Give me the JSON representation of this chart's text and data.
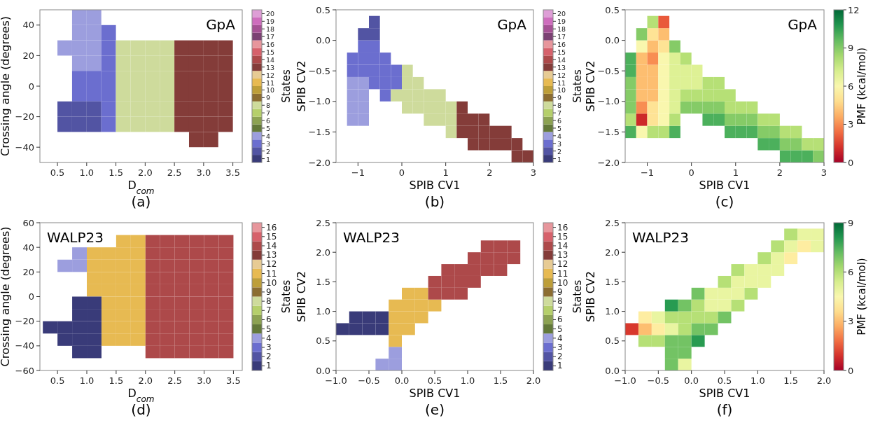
{
  "chart_data": [
    {
      "type": "scatter",
      "title": "GpA",
      "xlabel": "D$_{com}$",
      "ylabel": "Crossing angle (degrees)",
      "clabel": "States",
      "annotations": [
        "(a)"
      ],
      "marker": "square",
      "x": [
        0.625,
        0.625,
        0.625,
        0.875,
        0.875,
        0.875,
        0.875,
        0.875,
        0.875,
        0.875,
        0.875,
        1.125,
        1.125,
        1.125,
        1.125,
        1.125,
        1.125,
        1.125,
        1.125,
        1.375,
        1.375,
        1.375,
        1.375,
        1.375,
        1.375,
        1.375,
        1.625,
        1.625,
        1.625,
        1.625,
        1.625,
        1.625,
        1.875,
        1.875,
        1.875,
        1.875,
        1.875,
        1.875,
        2.125,
        2.125,
        2.125,
        2.125,
        2.125,
        2.125,
        2.375,
        2.375,
        2.375,
        2.375,
        2.375,
        2.375,
        2.625,
        2.625,
        2.625,
        2.625,
        2.625,
        2.625,
        2.875,
        2.875,
        2.875,
        2.875,
        2.875,
        2.875,
        2.875,
        3.125,
        3.125,
        3.125,
        3.125,
        3.125,
        3.125,
        3.125,
        3.375,
        3.375,
        3.375,
        3.375,
        3.375,
        3.375
      ],
      "values": [
        25,
        -15,
        -25,
        45,
        35,
        25,
        15,
        5,
        -5,
        -15,
        -25,
        45,
        35,
        25,
        15,
        5,
        -5,
        -15,
        -25,
        35,
        25,
        15,
        5,
        -5,
        -15,
        -25,
        25,
        15,
        5,
        -5,
        -15,
        -25,
        25,
        15,
        5,
        -5,
        -15,
        -25,
        25,
        15,
        5,
        -5,
        -15,
        -25,
        25,
        15,
        5,
        -5,
        -15,
        -25,
        25,
        15,
        5,
        -5,
        -15,
        -25,
        25,
        15,
        5,
        -5,
        -15,
        -25,
        -35,
        25,
        15,
        5,
        -5,
        -15,
        -25,
        -35,
        25,
        15,
        5,
        -5,
        -15,
        -25
      ],
      "cvalues": [
        4,
        2,
        2,
        4,
        4,
        4,
        4,
        3,
        3,
        2,
        2,
        4,
        4,
        4,
        4,
        3,
        3,
        2,
        2,
        3,
        3,
        3,
        3,
        3,
        3,
        3,
        8,
        8,
        8,
        8,
        8,
        8,
        8,
        8,
        8,
        8,
        8,
        8,
        8,
        8,
        8,
        8,
        8,
        8,
        8,
        8,
        8,
        8,
        8,
        8,
        13,
        13,
        13,
        13,
        13,
        13,
        13,
        13,
        13,
        13,
        13,
        13,
        13,
        13,
        13,
        13,
        13,
        13,
        13,
        13,
        13,
        13,
        13,
        13,
        13,
        13
      ],
      "xlim": [
        0.2,
        3.66
      ],
      "xticks": [
        {
          "value": 0.5,
          "label": "0.5"
        },
        {
          "value": 1,
          "label": "1.0"
        },
        {
          "value": 1.5,
          "label": "1.5"
        },
        {
          "value": 2,
          "label": "2.0"
        },
        {
          "value": 2.5,
          "label": "2.5"
        },
        {
          "value": 3,
          "label": "3.0"
        },
        {
          "value": 3.5,
          "label": "3.5"
        }
      ],
      "ylim": [
        -50,
        50
      ],
      "yticks": [
        {
          "value": -40,
          "label": "−40"
        },
        {
          "value": -20,
          "label": "−20"
        },
        0,
        20,
        40
      ],
      "clim": [
        0.5,
        20.5
      ],
      "cticks": [
        1,
        2,
        3,
        4,
        5,
        6,
        7,
        8,
        9,
        10,
        11,
        12,
        13,
        14,
        15,
        16,
        17,
        18,
        19,
        20
      ]
    },
    {
      "type": "scatter",
      "title": "GpA",
      "xlabel": "SPIB CV1",
      "ylabel": "SPIB CV2",
      "clabel": "States",
      "annotations": [
        "(b)"
      ],
      "marker": "square",
      "x": [
        -1.125,
        -1.125,
        -1.125,
        -1.125,
        -1.125,
        -1.125,
        -0.875,
        -0.875,
        -0.875,
        -0.875,
        -0.875,
        -0.875,
        -0.875,
        -0.875,
        -0.625,
        -0.625,
        -0.625,
        -0.625,
        -0.625,
        -0.625,
        -0.375,
        -0.375,
        -0.375,
        -0.375,
        -0.125,
        -0.125,
        -0.125,
        0.125,
        0.125,
        0.125,
        0.125,
        0.375,
        0.375,
        0.375,
        0.625,
        0.625,
        0.625,
        0.875,
        0.875,
        0.875,
        1.125,
        1.125,
        1.125,
        1.375,
        1.375,
        1.375,
        1.625,
        1.625,
        1.625,
        1.875,
        1.875,
        1.875,
        2.125,
        2.125,
        2.375,
        2.375,
        2.625,
        2.625,
        2.875
      ],
      "values": [
        -1.3,
        -1.1,
        -0.9,
        -0.7,
        -0.5,
        -0.3,
        -1.3,
        -1.1,
        -0.9,
        -0.7,
        -0.5,
        -0.3,
        -0.1,
        0.1,
        -0.7,
        -0.5,
        -0.3,
        -0.1,
        0.1,
        0.3,
        -0.9,
        -0.7,
        -0.5,
        -0.3,
        -0.9,
        -0.7,
        -0.5,
        -1.1,
        -0.9,
        -0.7,
        -0.5,
        -1.1,
        -0.9,
        -0.7,
        -1.3,
        -1.1,
        -0.9,
        -1.3,
        -1.1,
        -0.9,
        -1.5,
        -1.3,
        -1.1,
        -1.5,
        -1.3,
        -1.1,
        -1.7,
        -1.5,
        -1.3,
        -1.7,
        -1.5,
        -1.3,
        -1.7,
        -1.5,
        -1.7,
        -1.5,
        -1.9,
        -1.7,
        -1.9
      ],
      "cvalues": [
        4,
        4,
        4,
        4,
        3,
        3,
        4,
        4,
        4,
        4,
        3,
        3,
        3,
        2,
        3,
        3,
        3,
        3,
        2,
        2,
        3,
        3,
        3,
        3,
        8,
        3,
        3,
        8,
        8,
        8,
        8,
        8,
        8,
        8,
        8,
        8,
        8,
        8,
        8,
        8,
        8,
        8,
        8,
        13,
        13,
        13,
        13,
        13,
        13,
        13,
        13,
        13,
        13,
        13,
        13,
        13,
        13,
        13,
        13
      ],
      "xlim": [
        -1.5,
        3
      ],
      "xticks": [
        {
          "value": -1,
          "label": "−1"
        },
        0,
        1,
        2,
        3
      ],
      "ylim": [
        -2,
        0.5
      ],
      "yticks": [
        {
          "value": -2,
          "label": "−2.0"
        },
        {
          "value": -1.5,
          "label": "−1.5"
        },
        {
          "value": -1,
          "label": "−1.0"
        },
        {
          "value": -0.5,
          "label": "−0.5"
        },
        {
          "value": 0,
          "label": "0.0"
        },
        0.5
      ],
      "clim": [
        0.5,
        20.5
      ],
      "cticks": [
        1,
        2,
        3,
        4,
        5,
        6,
        7,
        8,
        9,
        10,
        11,
        12,
        13,
        14,
        15,
        16,
        17,
        18,
        19,
        20
      ]
    },
    {
      "type": "scatter",
      "title": "GpA",
      "xlabel": "SPIB CV1",
      "ylabel": "SPIB CV2",
      "clabel": "PMF (kcal/mol)",
      "annotations": [
        "(c)"
      ],
      "marker": "square",
      "x": [
        -1.375,
        -1.375,
        -1.375,
        -1.375,
        -1.375,
        -1.375,
        -1.375,
        -1.125,
        -1.125,
        -1.125,
        -1.125,
        -1.125,
        -1.125,
        -1.125,
        -1.125,
        -1.125,
        -0.875,
        -0.875,
        -0.875,
        -0.875,
        -0.875,
        -0.875,
        -0.875,
        -0.875,
        -0.875,
        -0.875,
        -0.625,
        -0.625,
        -0.625,
        -0.625,
        -0.625,
        -0.625,
        -0.625,
        -0.625,
        -0.625,
        -0.625,
        -0.375,
        -0.375,
        -0.375,
        -0.375,
        -0.375,
        -0.375,
        -0.375,
        -0.375,
        -0.125,
        -0.125,
        -0.125,
        -0.125,
        -0.125,
        0.125,
        0.125,
        0.125,
        0.125,
        0.375,
        0.375,
        0.375,
        0.375,
        0.625,
        0.625,
        0.625,
        0.625,
        0.875,
        0.875,
        0.875,
        0.875,
        1.125,
        1.125,
        1.125,
        1.375,
        1.375,
        1.375,
        1.625,
        1.625,
        1.625,
        1.875,
        1.875,
        1.875,
        2.125,
        2.125,
        2.125,
        2.375,
        2.375,
        2.375,
        2.625,
        2.625,
        2.875,
        2.875
      ],
      "values": [
        -1.5,
        -1.3,
        -1.1,
        -0.9,
        -0.7,
        -0.5,
        -0.3,
        -1.5,
        -1.3,
        -1.1,
        -0.9,
        -0.7,
        -0.5,
        -0.3,
        -0.1,
        0.1,
        -1.5,
        -1.3,
        -1.1,
        -0.9,
        -0.7,
        -0.5,
        -0.3,
        -0.1,
        0.1,
        0.3,
        -1.5,
        -1.3,
        -1.1,
        -0.9,
        -0.7,
        -0.5,
        -0.3,
        -0.1,
        0.1,
        0.3,
        -1.5,
        -1.3,
        -1.1,
        -0.9,
        -0.7,
        -0.5,
        -0.3,
        -0.1,
        -1.1,
        -0.9,
        -0.7,
        -0.5,
        -0.3,
        -1.1,
        -0.9,
        -0.7,
        -0.5,
        -1.3,
        -1.1,
        -0.9,
        -0.7,
        -1.3,
        -1.1,
        -0.9,
        -0.7,
        -1.5,
        -1.3,
        -1.1,
        -0.9,
        -1.5,
        -1.3,
        -1.1,
        -1.5,
        -1.3,
        -1.1,
        -1.7,
        -1.5,
        -1.3,
        -1.7,
        -1.5,
        -1.3,
        -1.9,
        -1.7,
        -1.5,
        -1.9,
        -1.7,
        -1.5,
        -1.9,
        -1.7,
        -1.9,
        -1.7
      ],
      "cvalues": [
        10,
        8,
        9,
        9,
        9,
        10,
        10,
        6,
        1,
        3,
        4,
        4,
        4,
        4,
        6,
        9,
        8,
        5,
        5,
        4,
        4,
        4,
        3,
        4,
        5,
        8,
        8,
        6,
        6,
        6,
        6,
        6,
        6,
        5,
        4,
        2,
        10,
        8,
        7,
        7,
        7,
        7,
        7,
        9,
        9,
        8,
        7,
        7,
        8,
        9,
        8,
        7,
        7,
        10,
        9,
        8,
        8,
        10,
        9,
        8,
        8,
        10,
        9,
        8,
        8,
        10,
        9,
        8,
        10,
        9,
        8,
        10,
        9,
        8,
        10,
        9,
        8,
        10,
        9,
        8,
        10,
        9,
        8,
        10,
        8,
        9,
        8
      ],
      "xlim": [
        -1.5,
        3
      ],
      "xticks": [
        {
          "value": -1,
          "label": "−1"
        },
        0,
        1,
        2,
        3
      ],
      "ylim": [
        -2,
        0.5
      ],
      "yticks": [
        {
          "value": -2,
          "label": "−2.0"
        },
        {
          "value": -1.5,
          "label": "−1.5"
        },
        {
          "value": -1,
          "label": "−1.0"
        },
        {
          "value": -0.5,
          "label": "−0.5"
        },
        {
          "value": 0,
          "label": "0.0"
        },
        0.5
      ],
      "clim": [
        0,
        12
      ],
      "cticks": [
        0,
        3,
        6,
        9,
        12
      ]
    },
    {
      "type": "scatter",
      "title": "WALP23",
      "xlabel": "D$_{com}$",
      "ylabel": "Crossing angle (degrees)",
      "clabel": "States",
      "annotations": [
        "(d)"
      ],
      "marker": "square",
      "x": [
        0.375,
        0.625,
        0.625,
        0.625,
        0.875,
        0.875,
        0.875,
        0.875,
        0.875,
        0.875,
        0.875,
        1.125,
        1.125,
        1.125,
        1.125,
        1.125,
        1.125,
        1.125,
        1.125,
        1.125,
        1.375,
        1.375,
        1.375,
        1.375,
        1.375,
        1.375,
        1.375,
        1.375,
        1.625,
        1.625,
        1.625,
        1.625,
        1.625,
        1.625,
        1.625,
        1.625,
        1.625,
        1.875,
        1.875,
        1.875,
        1.875,
        1.875,
        1.875,
        1.875,
        1.875,
        1.875,
        2.125,
        2.125,
        2.125,
        2.125,
        2.125,
        2.125,
        2.125,
        2.125,
        2.125,
        2.125,
        2.375,
        2.375,
        2.375,
        2.375,
        2.375,
        2.375,
        2.375,
        2.375,
        2.375,
        2.375,
        2.625,
        2.625,
        2.625,
        2.625,
        2.625,
        2.625,
        2.625,
        2.625,
        2.625,
        2.625,
        2.875,
        2.875,
        2.875,
        2.875,
        2.875,
        2.875,
        2.875,
        2.875,
        2.875,
        2.875,
        3.125,
        3.125,
        3.125,
        3.125,
        3.125,
        3.125,
        3.125,
        3.125,
        3.125,
        3.125,
        3.375,
        3.375,
        3.375,
        3.375,
        3.375,
        3.375,
        3.375,
        3.375,
        3.375,
        3.375
      ],
      "values": [
        -25,
        25,
        -25,
        -35,
        35,
        25,
        -5,
        -15,
        -25,
        -35,
        -45,
        35,
        25,
        15,
        5,
        -5,
        -15,
        -25,
        -35,
        -45,
        35,
        25,
        15,
        5,
        -5,
        -15,
        -25,
        -35,
        45,
        35,
        25,
        15,
        5,
        -5,
        -15,
        -25,
        -35,
        45,
        35,
        25,
        15,
        5,
        -5,
        -15,
        -25,
        -35,
        45,
        35,
        25,
        15,
        5,
        -5,
        -15,
        -25,
        -35,
        -45,
        45,
        35,
        25,
        15,
        5,
        -5,
        -15,
        -25,
        -35,
        -45,
        45,
        35,
        25,
        15,
        5,
        -5,
        -15,
        -25,
        -35,
        -45,
        45,
        35,
        25,
        15,
        5,
        -5,
        -15,
        -25,
        -35,
        -45,
        45,
        35,
        25,
        15,
        5,
        -5,
        -15,
        -25,
        -35,
        -45,
        45,
        35,
        25,
        15,
        5,
        -5,
        -15,
        -25,
        -35,
        -45
      ],
      "cvalues": [
        1,
        4,
        1,
        1,
        4,
        4,
        1,
        1,
        1,
        1,
        1,
        11,
        11,
        11,
        11,
        1,
        1,
        1,
        1,
        1,
        11,
        11,
        11,
        11,
        11,
        11,
        11,
        11,
        11,
        11,
        11,
        11,
        11,
        11,
        11,
        11,
        11,
        11,
        11,
        11,
        11,
        11,
        11,
        11,
        11,
        11,
        14,
        14,
        14,
        14,
        14,
        14,
        14,
        14,
        14,
        14,
        14,
        14,
        14,
        14,
        14,
        14,
        14,
        14,
        14,
        14,
        14,
        14,
        14,
        14,
        14,
        14,
        14,
        14,
        14,
        14,
        14,
        14,
        14,
        14,
        14,
        14,
        14,
        14,
        14,
        14,
        14,
        14,
        14,
        14,
        14,
        14,
        14,
        14,
        14,
        14,
        14,
        14,
        14,
        14,
        14,
        14,
        14,
        14,
        14,
        14
      ],
      "xlim": [
        0.2,
        3.65
      ],
      "xticks": [
        {
          "value": 0.5,
          "label": "0.5"
        },
        {
          "value": 1,
          "label": "1.0"
        },
        {
          "value": 1.5,
          "label": "1.5"
        },
        {
          "value": 2,
          "label": "2.0"
        },
        {
          "value": 2.5,
          "label": "2.5"
        },
        {
          "value": 3,
          "label": "3.0"
        },
        {
          "value": 3.5,
          "label": "3.5"
        }
      ],
      "ylim": [
        -60,
        60
      ],
      "yticks": [
        {
          "value": -60,
          "label": "−60"
        },
        {
          "value": -40,
          "label": "−40"
        },
        {
          "value": -20,
          "label": "−20"
        },
        0,
        20,
        40,
        60
      ],
      "clim": [
        0.5,
        16.5
      ],
      "cticks": [
        1,
        2,
        3,
        4,
        5,
        6,
        7,
        8,
        9,
        10,
        11,
        12,
        13,
        14,
        15,
        16
      ]
    },
    {
      "type": "scatter",
      "title": "WALP23",
      "xlabel": "SPIB CV1",
      "ylabel": "SPIB CV2",
      "clabel": "States",
      "annotations": [
        "(e)"
      ],
      "marker": "square",
      "x": [
        -0.9,
        -0.7,
        -0.7,
        -0.5,
        -0.5,
        -0.3,
        -0.3,
        -0.3,
        -0.1,
        -0.1,
        -0.1,
        -0.1,
        -0.1,
        -0.1,
        0.1,
        0.1,
        0.1,
        0.1,
        0.3,
        0.3,
        0.3,
        0.5,
        0.5,
        0.5,
        0.7,
        0.7,
        0.7,
        0.9,
        0.9,
        0.9,
        1.1,
        1.1,
        1.1,
        1.3,
        1.3,
        1.3,
        1.5,
        1.5,
        1.5,
        1.7,
        1.7
      ],
      "values": [
        0.7,
        0.7,
        0.9,
        0.7,
        0.9,
        0.1,
        0.7,
        0.9,
        0.1,
        0.3,
        0.5,
        0.7,
        0.9,
        1.1,
        0.7,
        0.9,
        1.1,
        1.3,
        0.9,
        1.1,
        1.3,
        1.1,
        1.3,
        1.5,
        1.3,
        1.5,
        1.7,
        1.3,
        1.5,
        1.7,
        1.5,
        1.7,
        1.9,
        1.7,
        1.9,
        2.1,
        1.7,
        1.9,
        2.1,
        1.9,
        2.1
      ],
      "cvalues": [
        1,
        1,
        1,
        1,
        1,
        4,
        1,
        1,
        4,
        4,
        11,
        11,
        11,
        11,
        11,
        11,
        11,
        11,
        11,
        11,
        11,
        11,
        14,
        14,
        14,
        14,
        14,
        14,
        14,
        14,
        14,
        14,
        14,
        14,
        14,
        14,
        14,
        14,
        14,
        14,
        14
      ],
      "xlim": [
        -1,
        2
      ],
      "xticks": [
        {
          "value": -1,
          "label": "−1.0"
        },
        {
          "value": -0.5,
          "label": "−0.5"
        },
        {
          "value": 0,
          "label": "0.0"
        },
        0.5,
        {
          "value": 1,
          "label": "1.0"
        },
        1.5,
        {
          "value": 2,
          "label": "2.0"
        }
      ],
      "ylim": [
        0,
        2.5
      ],
      "yticks": [
        {
          "value": 0,
          "label": "0.0"
        },
        0.5,
        {
          "value": 1,
          "label": "1.0"
        },
        1.5,
        {
          "value": 2,
          "label": "2.0"
        },
        2.5
      ],
      "clim": [
        0.5,
        16.5
      ],
      "cticks": [
        1,
        2,
        3,
        4,
        5,
        6,
        7,
        8,
        9,
        10,
        11,
        12,
        13,
        14,
        15,
        16
      ]
    },
    {
      "type": "scatter",
      "title": "WALP23",
      "xlabel": "SPIB CV1",
      "ylabel": "SPIB CV2",
      "clabel": "PMF (kcal/mol)",
      "annotations": [
        "(f)"
      ],
      "marker": "square",
      "x": [
        -0.9,
        -0.7,
        -0.7,
        -0.7,
        -0.5,
        -0.5,
        -0.5,
        -0.3,
        -0.3,
        -0.3,
        -0.3,
        -0.3,
        -0.3,
        -0.1,
        -0.1,
        -0.1,
        -0.1,
        -0.1,
        -0.1,
        0.1,
        0.1,
        0.1,
        0.1,
        0.1,
        0.3,
        0.3,
        0.3,
        0.3,
        0.5,
        0.5,
        0.5,
        0.5,
        0.7,
        0.7,
        0.7,
        0.7,
        0.9,
        0.9,
        0.9,
        1.1,
        1.1,
        1.1,
        1.3,
        1.3,
        1.3,
        1.5,
        1.5,
        1.5,
        1.7,
        1.7,
        1.9,
        1.9
      ],
      "values": [
        0.7,
        0.5,
        0.7,
        0.9,
        0.5,
        0.7,
        0.9,
        0.1,
        0.3,
        0.5,
        0.7,
        0.9,
        1.1,
        0.1,
        0.3,
        0.5,
        0.7,
        0.9,
        1.1,
        0.5,
        0.7,
        0.9,
        1.1,
        1.3,
        0.7,
        0.9,
        1.1,
        1.3,
        0.9,
        1.1,
        1.3,
        1.5,
        1.1,
        1.3,
        1.5,
        1.7,
        1.3,
        1.5,
        1.7,
        1.5,
        1.7,
        1.9,
        1.7,
        1.9,
        2.1,
        1.9,
        2.1,
        2.3,
        2.1,
        2.3,
        2.1,
        2.3
      ],
      "cvalues": [
        1,
        6,
        3,
        4,
        6,
        4,
        5,
        7,
        7,
        7,
        5,
        6,
        8,
        5,
        7,
        7,
        6,
        6,
        7,
        8,
        7,
        6,
        6,
        7,
        7,
        6,
        5,
        5,
        7,
        5,
        5,
        6,
        6,
        5,
        5,
        6,
        6,
        5,
        5,
        5,
        5,
        6,
        5,
        5,
        6,
        4,
        5,
        6,
        4,
        5,
        5,
        5
      ],
      "xlim": [
        -1,
        2
      ],
      "xticks": [
        {
          "value": -1,
          "label": "−1.0"
        },
        {
          "value": -0.5,
          "label": "−0.5"
        },
        {
          "value": 0,
          "label": "0.0"
        },
        0.5,
        {
          "value": 1,
          "label": "1.0"
        },
        1.5,
        {
          "value": 2,
          "label": "2.0"
        }
      ],
      "ylim": [
        0,
        2.5
      ],
      "yticks": [
        {
          "value": 0,
          "label": "0.0"
        },
        0.5,
        {
          "value": 1,
          "label": "1.0"
        },
        1.5,
        {
          "value": 2,
          "label": "2.0"
        },
        2.5
      ],
      "clim": [
        0,
        9
      ],
      "cticks": [
        0,
        3,
        6,
        9
      ]
    }
  ]
}
